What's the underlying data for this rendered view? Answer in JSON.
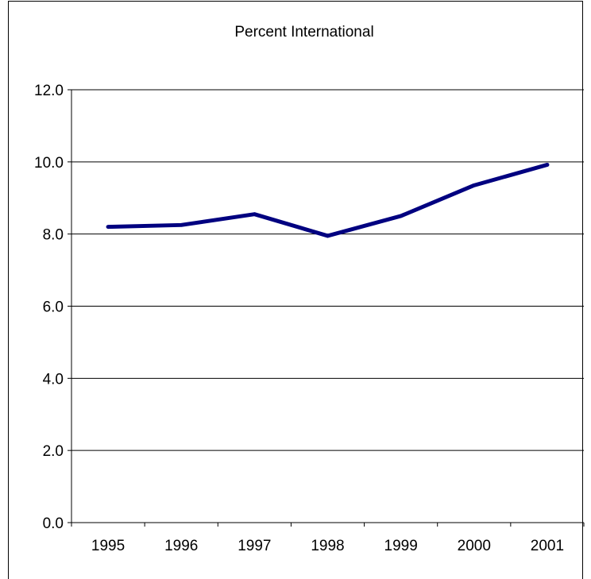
{
  "chart_data": {
    "type": "line",
    "title": "Percent International",
    "xlabel": "",
    "ylabel": "",
    "categories": [
      "1995",
      "1996",
      "1997",
      "1998",
      "1999",
      "2000",
      "2001"
    ],
    "series": [
      {
        "values": [
          8.2,
          8.25,
          8.55,
          7.95,
          8.5,
          9.35,
          9.92
        ],
        "color": "#000080"
      }
    ],
    "ylim": [
      0,
      12
    ],
    "yticks": [
      "0.0",
      "2.0",
      "4.0",
      "6.0",
      "8.0",
      "10.0",
      "12.0"
    ],
    "grid": true,
    "legend": "none"
  }
}
